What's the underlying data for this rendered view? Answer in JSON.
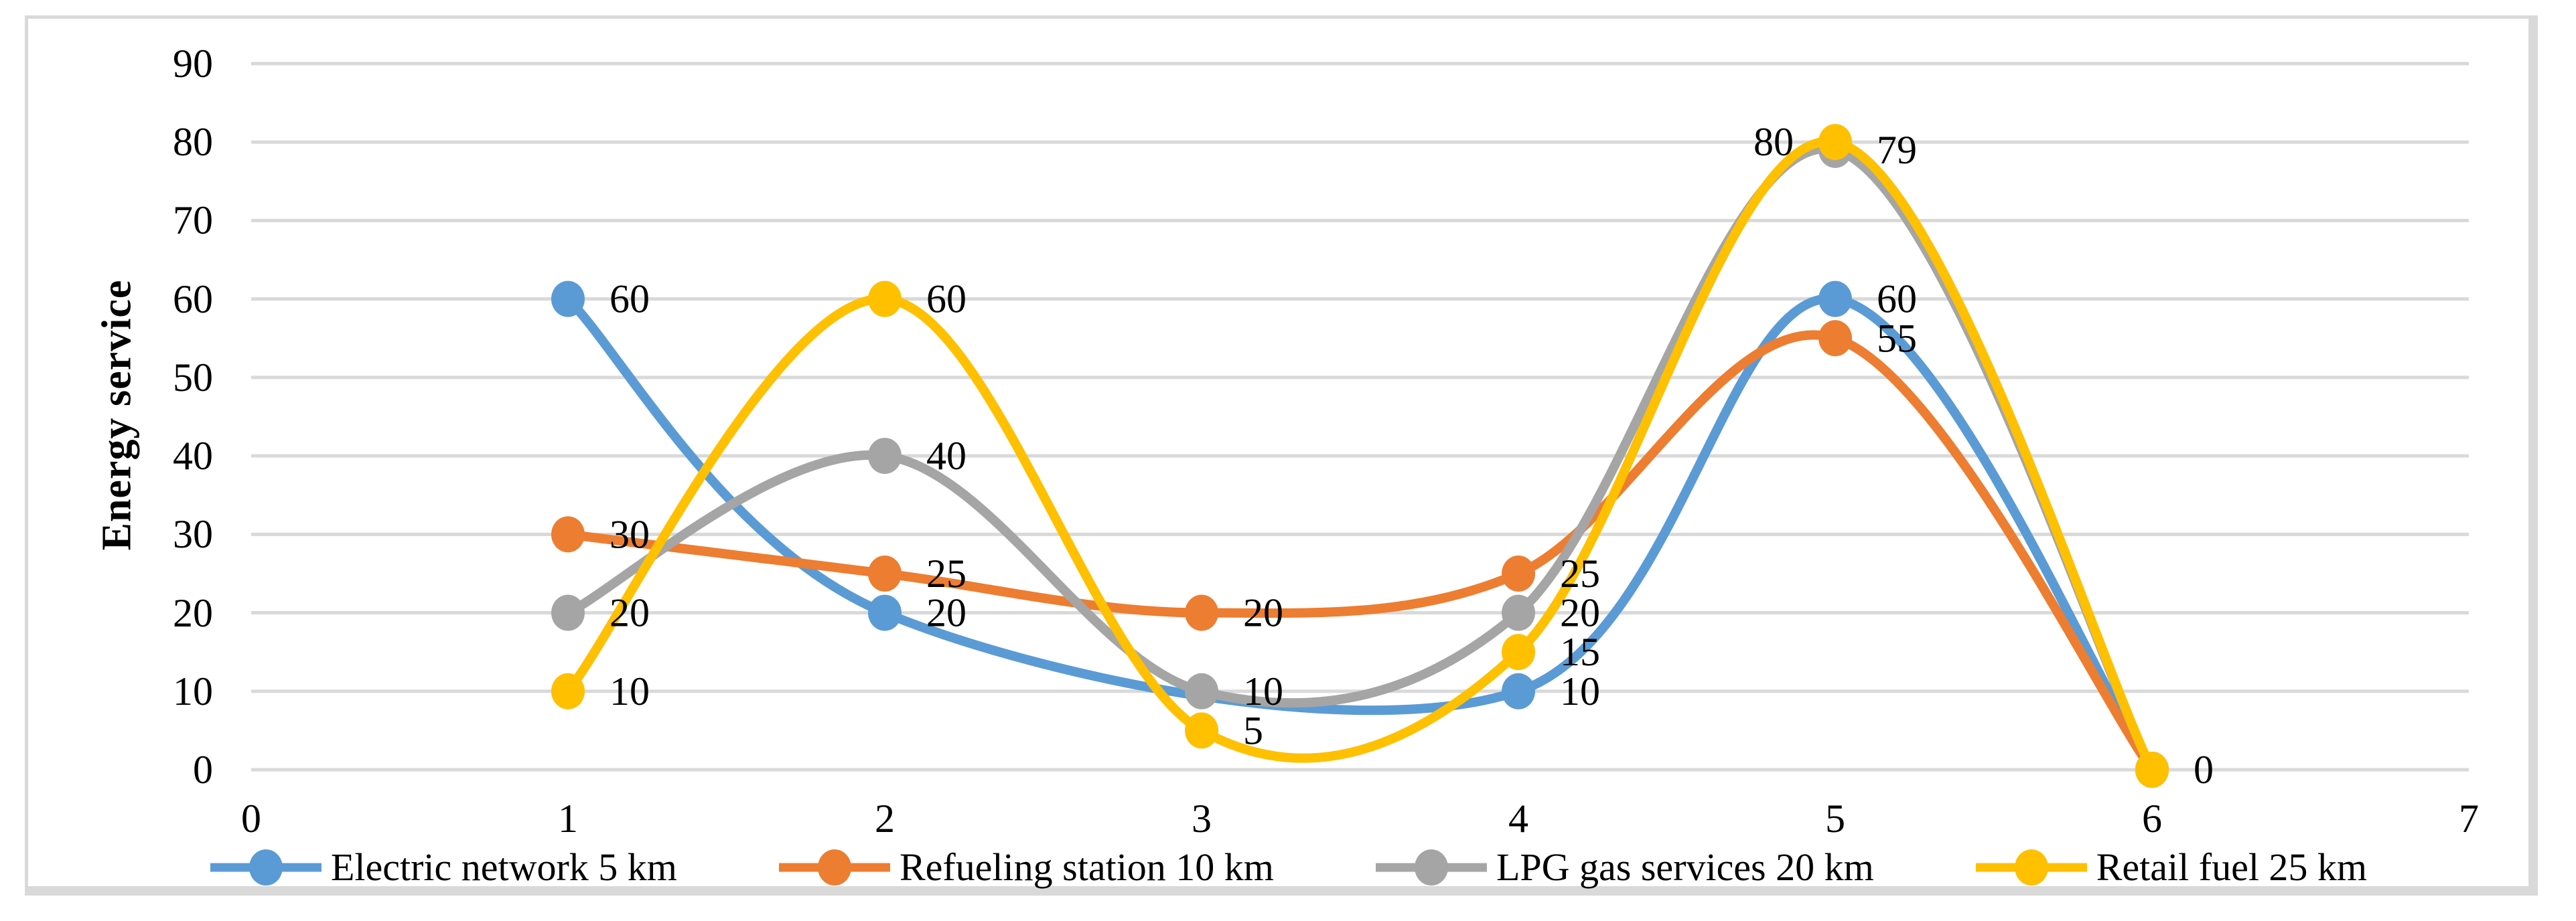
{
  "figure": {
    "background": "#ffffff",
    "frame_border_color": "#D9D9D9"
  },
  "chart_data": {
    "type": "line",
    "title": "",
    "xlabel": "",
    "ylabel": "Energy service",
    "xlim": [
      0,
      7
    ],
    "ylim": [
      0,
      90
    ],
    "x_ticks": [
      "0",
      "1",
      "2",
      "3",
      "4",
      "5",
      "6",
      "7"
    ],
    "y_ticks": [
      "0",
      "10",
      "20",
      "30",
      "40",
      "50",
      "60",
      "70",
      "80",
      "90"
    ],
    "grid": "horizontal",
    "gridline_color": "#D9D9D9",
    "smooth": true,
    "marker": "circle",
    "data_label_color": "#000000",
    "legend_position": "bottom",
    "series": [
      {
        "name": "Electric network 5 km",
        "color": "#5B9BD5",
        "points": [
          {
            "x": 1,
            "y": 60,
            "label": "60",
            "label_side": "right"
          },
          {
            "x": 2,
            "y": 20,
            "label": "20",
            "label_side": "right"
          },
          {
            "x": 4,
            "y": 10,
            "label": "10",
            "label_side": "right"
          },
          {
            "x": 5,
            "y": 60,
            "label": "60",
            "label_side": "right"
          },
          {
            "x": 6,
            "y": 0
          }
        ]
      },
      {
        "name": "Refueling station 10 km",
        "color": "#ED7D31",
        "points": [
          {
            "x": 1,
            "y": 30,
            "label": "30",
            "label_side": "right"
          },
          {
            "x": 2,
            "y": 25,
            "label": "25",
            "label_side": "right"
          },
          {
            "x": 3,
            "y": 20,
            "label": "20",
            "label_side": "right"
          },
          {
            "x": 4,
            "y": 25,
            "label": "25",
            "label_side": "right"
          },
          {
            "x": 5,
            "y": 55,
            "label": "55",
            "label_side": "right"
          },
          {
            "x": 6,
            "y": 0
          }
        ]
      },
      {
        "name": "LPG gas services 20 km",
        "color": "#A5A5A5",
        "points": [
          {
            "x": 1,
            "y": 20,
            "label": "20",
            "label_side": "right"
          },
          {
            "x": 2,
            "y": 40,
            "label": "40",
            "label_side": "right"
          },
          {
            "x": 3,
            "y": 10,
            "label": "10",
            "label_side": "right"
          },
          {
            "x": 4,
            "y": 20,
            "label": "20",
            "label_side": "right"
          },
          {
            "x": 5,
            "y": 79,
            "label": "79",
            "label_side": "right"
          },
          {
            "x": 6,
            "y": 0
          }
        ]
      },
      {
        "name": "Retail fuel 25 km",
        "color": "#FFC000",
        "points": [
          {
            "x": 1,
            "y": 10,
            "label": "10",
            "label_side": "right"
          },
          {
            "x": 2,
            "y": 60,
            "label": "60",
            "label_side": "right"
          },
          {
            "x": 3,
            "y": 5,
            "label": "5",
            "label_side": "right"
          },
          {
            "x": 4,
            "y": 15,
            "label": "15",
            "label_side": "right"
          },
          {
            "x": 5,
            "y": 80,
            "label": "80",
            "label_side": "left"
          },
          {
            "x": 6,
            "y": 0,
            "label": "0",
            "label_side": "right"
          }
        ]
      }
    ]
  }
}
